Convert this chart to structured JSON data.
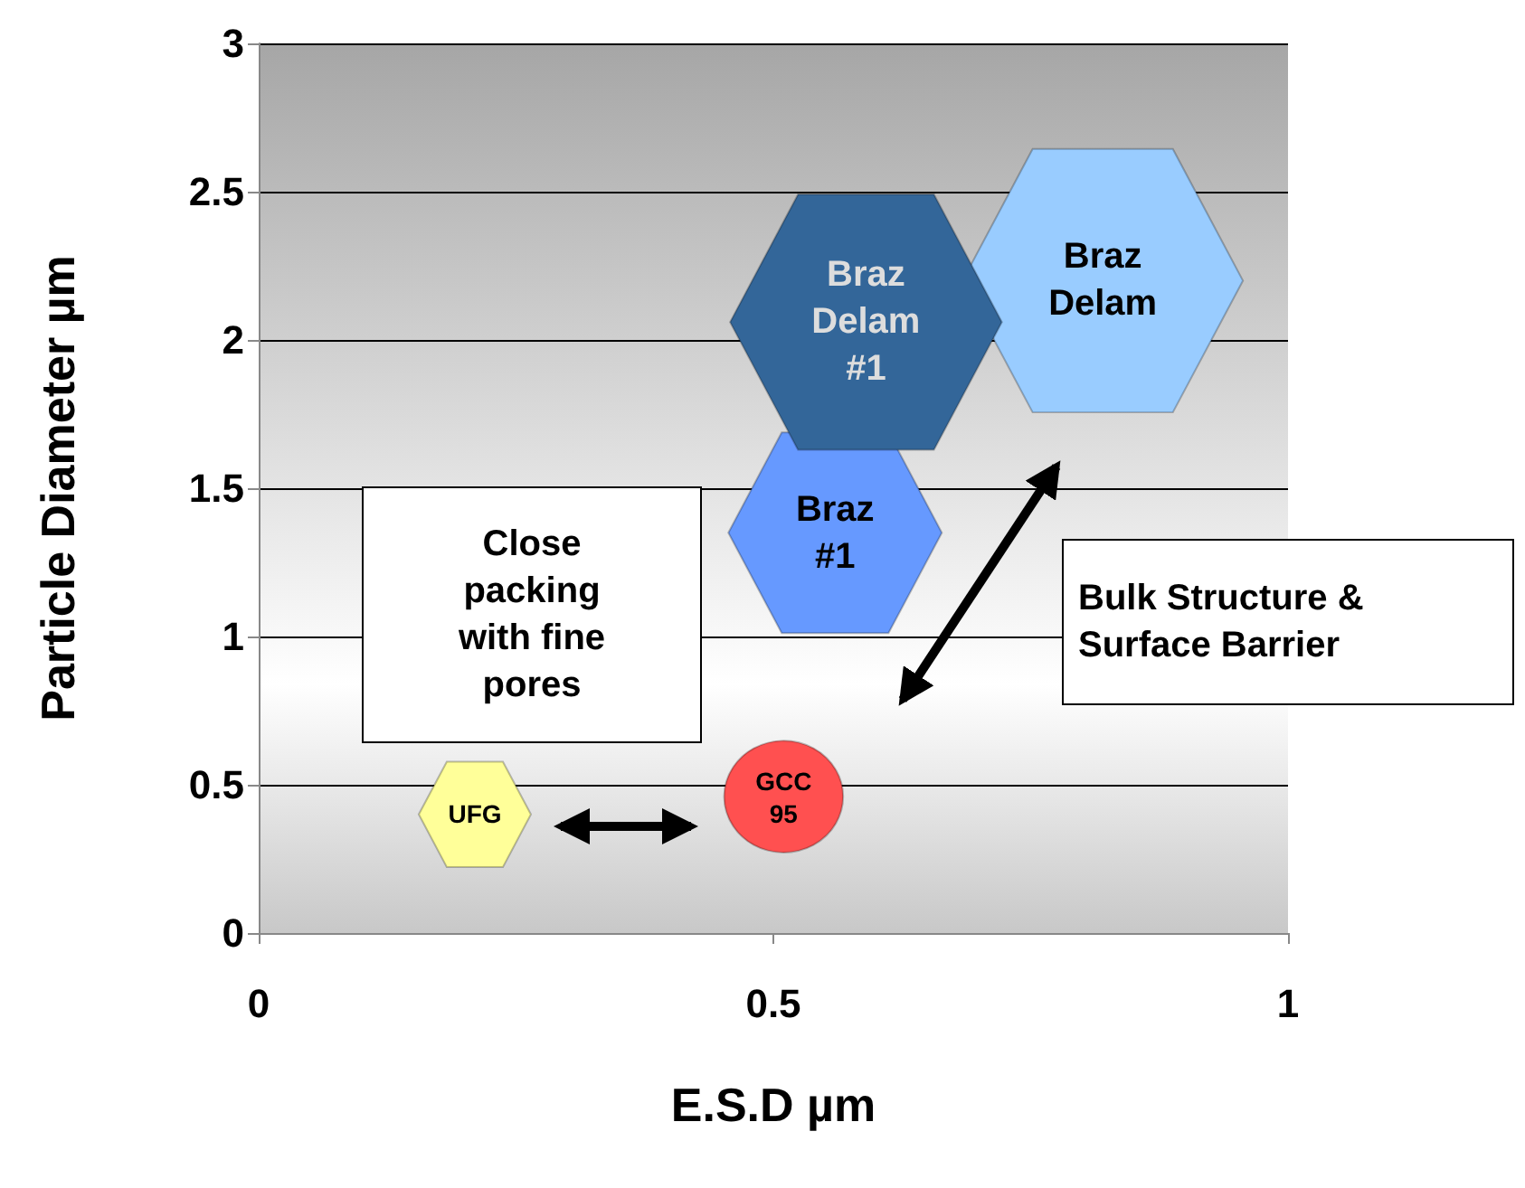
{
  "chart_data": {
    "type": "bubble",
    "xlabel": "E.S.D µm",
    "ylabel": "Particle Diameter µm",
    "xlim": [
      0,
      1
    ],
    "xticks": [
      0,
      0.5,
      1
    ],
    "ylim": [
      0,
      3
    ],
    "yticks": [
      0,
      0.5,
      1,
      1.5,
      2,
      2.5,
      3
    ],
    "grid": "y",
    "legend": false,
    "series": [
      {
        "name": "UFG",
        "color": "#ffff99",
        "x": [
          0.21
        ],
        "values": [
          0.4
        ],
        "sizes": [
          0.16
        ]
      },
      {
        "name": "GCC 95",
        "color": "#ff5050",
        "marker": "circle",
        "x": [
          0.51
        ],
        "values": [
          0.46
        ],
        "sizes": [
          0.18
        ]
      },
      {
        "name": "Braz #1",
        "color": "#6699ff",
        "x": [
          0.56
        ],
        "values": [
          1.35
        ],
        "sizes": [
          0.58
        ]
      },
      {
        "name": "Braz Delam",
        "color": "#99ccff",
        "x": [
          0.82
        ],
        "values": [
          2.2
        ],
        "sizes": [
          1
        ]
      },
      {
        "name": "Braz Delam #1",
        "color": "#336699",
        "x": [
          0.59
        ],
        "values": [
          2.06
        ],
        "sizes": [
          0.94
        ]
      }
    ],
    "annotations": [
      "Close packing with fine pores",
      "Bulk Structure & Surface Barrier"
    ]
  }
}
